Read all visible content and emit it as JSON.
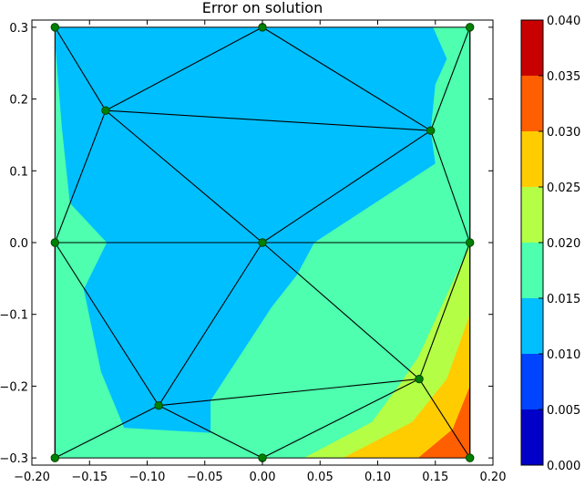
{
  "chart_data": {
    "type": "filled-contour-mesh",
    "title": "Error on solution",
    "xlabel": "",
    "ylabel": "",
    "xlim": [
      -0.2,
      0.2
    ],
    "ylim": [
      -0.31,
      0.31
    ],
    "x_ticks": [
      -0.2,
      -0.15,
      -0.1,
      -0.05,
      0.0,
      0.05,
      0.1,
      0.15,
      0.2
    ],
    "x_tick_labels": [
      "−0.20",
      "−0.15",
      "−0.10",
      "−0.05",
      "0.00",
      "0.05",
      "0.10",
      "0.15",
      "0.20"
    ],
    "y_ticks": [
      0.3,
      0.2,
      0.1,
      0.0,
      -0.1,
      -0.2,
      -0.3
    ],
    "y_tick_labels": [
      "0.3",
      "0.2",
      "0.1",
      "0.0",
      "−0.1",
      "−0.2",
      "−0.3"
    ],
    "grid": false,
    "colorbar": {
      "levels": [
        0.0,
        0.005,
        0.01,
        0.015,
        0.02,
        0.025,
        0.03,
        0.035,
        0.04
      ],
      "tick_labels": [
        "0.000",
        "0.005",
        "0.010",
        "0.015",
        "0.020",
        "0.025",
        "0.030",
        "0.035",
        "0.040"
      ],
      "colors": [
        "#0000c8",
        "#0044ff",
        "#00bfff",
        "#4dffae",
        "#b4ff46",
        "#ffcc00",
        "#ff5f00",
        "#c80000"
      ]
    },
    "nodes": [
      {
        "x": -0.18,
        "y": 0.3
      },
      {
        "x": 0.0,
        "y": 0.3
      },
      {
        "x": 0.18,
        "y": 0.3
      },
      {
        "x": -0.136,
        "y": 0.184
      },
      {
        "x": 0.146,
        "y": 0.156
      },
      {
        "x": -0.18,
        "y": 0.0
      },
      {
        "x": 0.0,
        "y": 0.0
      },
      {
        "x": 0.18,
        "y": 0.0
      },
      {
        "x": -0.09,
        "y": -0.227
      },
      {
        "x": 0.136,
        "y": -0.19
      },
      {
        "x": -0.18,
        "y": -0.3
      },
      {
        "x": 0.0,
        "y": -0.3
      },
      {
        "x": 0.18,
        "y": -0.3
      }
    ],
    "mesh_edges": [
      [
        0,
        1
      ],
      [
        1,
        2
      ],
      [
        0,
        3
      ],
      [
        1,
        3
      ],
      [
        1,
        4
      ],
      [
        2,
        4
      ],
      [
        3,
        4
      ],
      [
        0,
        5
      ],
      [
        3,
        5
      ],
      [
        3,
        6
      ],
      [
        4,
        6
      ],
      [
        4,
        7
      ],
      [
        2,
        7
      ],
      [
        5,
        6
      ],
      [
        6,
        7
      ],
      [
        5,
        8
      ],
      [
        6,
        8
      ],
      [
        6,
        9
      ],
      [
        7,
        9
      ],
      [
        8,
        9
      ],
      [
        5,
        10
      ],
      [
        8,
        10
      ],
      [
        8,
        11
      ],
      [
        9,
        11
      ],
      [
        9,
        12
      ],
      [
        7,
        12
      ],
      [
        10,
        11
      ],
      [
        11,
        12
      ],
      [
        10,
        5
      ],
      [
        2,
        12
      ]
    ],
    "regions": [
      {
        "level": 0.015,
        "points": [
          [
            -0.18,
            -0.3
          ],
          [
            0.18,
            -0.3
          ],
          [
            0.18,
            0.3
          ],
          [
            -0.18,
            0.3
          ]
        ]
      },
      {
        "level": 0.01,
        "points": [
          [
            -0.18,
            0.3
          ],
          [
            0.148,
            0.3
          ],
          [
            0.16,
            0.256
          ],
          [
            0.15,
            0.22
          ],
          [
            0.146,
            0.156
          ],
          [
            0.15,
            0.11
          ],
          [
            0.045,
            0.0
          ],
          [
            0.03,
            -0.045
          ],
          [
            0.008,
            -0.09
          ],
          [
            -0.045,
            -0.22
          ],
          [
            -0.045,
            -0.265
          ],
          [
            -0.12,
            -0.258
          ],
          [
            -0.14,
            -0.18
          ],
          [
            -0.155,
            -0.065
          ],
          [
            -0.135,
            0.0
          ],
          [
            -0.167,
            0.055
          ],
          [
            -0.174,
            0.16
          ],
          [
            -0.18,
            0.28
          ]
        ]
      },
      {
        "level": 0.02,
        "points": [
          [
            0.18,
            -0.003
          ],
          [
            0.18,
            -0.3
          ],
          [
            0.036,
            -0.3
          ],
          [
            0.095,
            -0.25
          ],
          [
            0.118,
            -0.2
          ],
          [
            0.135,
            -0.16
          ],
          [
            0.155,
            -0.09
          ]
        ]
      },
      {
        "level": 0.025,
        "points": [
          [
            0.18,
            -0.1
          ],
          [
            0.18,
            -0.3
          ],
          [
            0.07,
            -0.3
          ],
          [
            0.13,
            -0.25
          ],
          [
            0.16,
            -0.19
          ]
        ]
      },
      {
        "level": 0.03,
        "points": [
          [
            0.18,
            -0.2
          ],
          [
            0.18,
            -0.3
          ],
          [
            0.135,
            -0.3
          ],
          [
            0.165,
            -0.26
          ]
        ]
      }
    ]
  }
}
